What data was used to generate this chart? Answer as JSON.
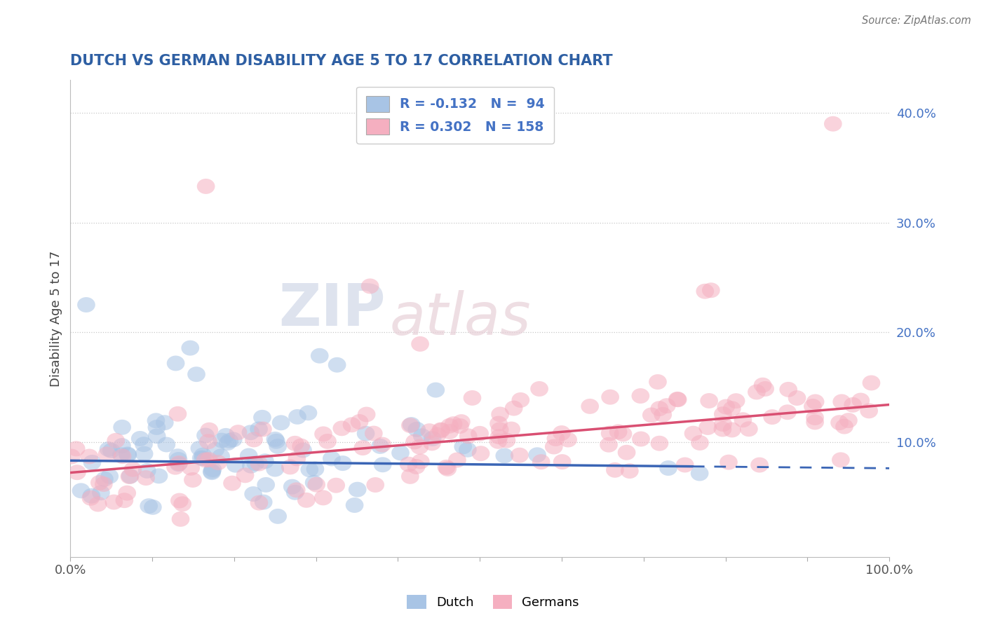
{
  "title": "DUTCH VS GERMAN DISABILITY AGE 5 TO 17 CORRELATION CHART",
  "source": "Source: ZipAtlas.com",
  "ylabel": "Disability Age 5 to 17",
  "watermark_zip": "ZIP",
  "watermark_atlas": "atlas",
  "xlim": [
    0.0,
    1.0
  ],
  "ylim": [
    -0.005,
    0.43
  ],
  "dutch_R": -0.132,
  "dutch_N": 94,
  "german_R": 0.302,
  "german_N": 158,
  "dutch_color": "#a8c4e5",
  "german_color": "#f5afc0",
  "dutch_line_color": "#3a65b5",
  "german_line_color": "#d94f72",
  "title_color": "#2e5fa3",
  "source_color": "#777777",
  "legend_text_color": "#4472c4",
  "background_color": "#ffffff",
  "grid_color": "#c8c8c8",
  "dutch_intercept": 0.083,
  "dutch_slope": -0.007,
  "german_intercept": 0.072,
  "german_slope": 0.062,
  "dutch_line_solid_end": 0.76
}
